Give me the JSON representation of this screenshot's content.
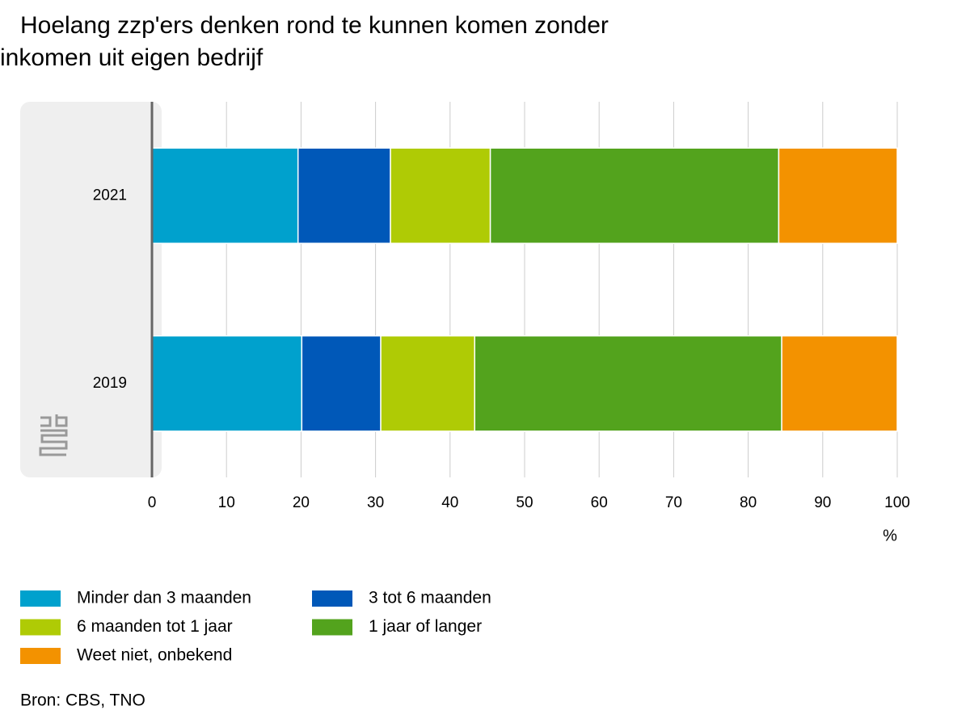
{
  "chart_data": {
    "type": "stacked-bar-horizontal",
    "title": "Hoelang zzp'ers denken rond te kunnen komen zonder inkomen uit eigen bedrijf",
    "categories": [
      "2021",
      "2019"
    ],
    "series": [
      {
        "name": "Minder dan 3 maanden",
        "color": "#00a1cd",
        "values": [
          19.6,
          20.1
        ]
      },
      {
        "name": "3 tot 6 maanden",
        "color": "#0058b8",
        "values": [
          12.4,
          10.6
        ]
      },
      {
        "name": "6 maanden tot 1 jaar",
        "color": "#afcb05",
        "values": [
          13.4,
          12.6
        ]
      },
      {
        "name": "1 jaar of langer",
        "color": "#53a31d",
        "values": [
          38.7,
          41.2
        ]
      },
      {
        "name": "Weet niet, onbekend",
        "color": "#f39200",
        "values": [
          15.9,
          15.5
        ]
      }
    ],
    "xlabel": "%",
    "xlim": [
      0,
      100
    ],
    "xticks": [
      0,
      10,
      20,
      30,
      40,
      50,
      60,
      70,
      80,
      90,
      100
    ],
    "grid": true,
    "source": "Bron: CBS, TNO"
  }
}
